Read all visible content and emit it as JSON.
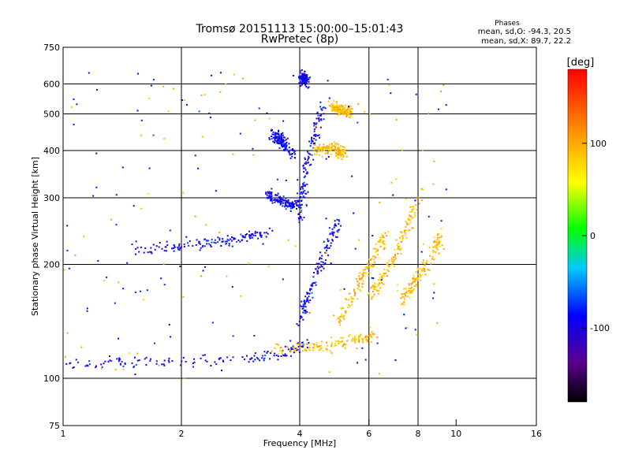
{
  "chart_data": {
    "type": "scatter",
    "title": "Tromsø 20151113 15:00:00–15:01:43",
    "subtitle": "RwPretec (8p)",
    "xlabel": "Frequency [MHz]",
    "ylabel": "Stationary phase Virtual Height [km]",
    "x_scale": "log",
    "y_scale": "log",
    "xlim": [
      1,
      16
    ],
    "ylim": [
      75,
      750
    ],
    "x_ticks": [
      "1",
      "2",
      "4",
      "6",
      "8",
      "10",
      "16"
    ],
    "x_tick_values": [
      1,
      2,
      4,
      6,
      8,
      10,
      16
    ],
    "y_ticks": [
      "75",
      "100",
      "200",
      "300",
      "400",
      "500",
      "600",
      "750"
    ],
    "y_tick_values": [
      75,
      100,
      200,
      300,
      400,
      500,
      600,
      750
    ],
    "x_gridlines": [
      2,
      4,
      6,
      8
    ],
    "y_gridlines": [
      100,
      200,
      300,
      400,
      500,
      600
    ],
    "legend": {
      "title": "Phases",
      "line1": "mean, sd,O: -94.3, 20.5",
      "line2": "mean, sd,X: 89.7, 22.2",
      "placement": "top-right"
    },
    "colorbar": {
      "label": "[deg]",
      "ticks": [
        "100",
        "0",
        "-100"
      ],
      "tick_values": [
        100,
        0,
        -100
      ],
      "range": [
        -180,
        180
      ],
      "colormap": "rainbow (black-purple-blue-cyan-green-yellow-orange-red)"
    },
    "series": [
      {
        "mode": "O",
        "phase_mean": -94.3,
        "traces": [
          {
            "x": [
              1.0,
              1.15,
              1.3,
              1.5,
              1.75,
              2.0,
              2.4,
              2.8,
              3.2,
              3.5,
              3.8,
              4.0,
              4.2
            ],
            "y": [
              108,
              109,
              110,
              110,
              111,
              111,
              112,
              113,
              114,
              116,
              118,
              120,
              124
            ]
          },
          {
            "x": [
              1.5,
              1.8,
              2.1,
              2.4,
              2.7,
              3.0,
              3.3
            ],
            "y": [
              220,
              222,
              225,
              228,
              232,
              238,
              242
            ]
          },
          {
            "x": [
              3.3,
              3.45,
              3.6,
              3.75,
              3.9
            ],
            "y": [
              305,
              300,
              295,
              290,
              285
            ]
          },
          {
            "x": [
              3.4,
              3.55,
              3.7,
              3.85
            ],
            "y": [
              440,
              430,
              410,
              390
            ]
          },
          {
            "x": [
              4.0,
              4.05,
              4.1,
              4.2,
              4.4,
              4.6
            ],
            "y": [
              260,
              300,
              340,
              380,
              450,
              520
            ]
          },
          {
            "x": [
              4.05,
              4.1,
              4.15
            ],
            "y": [
              630,
              620,
              610
            ]
          },
          {
            "x": [
              4.0,
              4.2,
              4.4,
              4.7,
              5.0
            ],
            "y": [
              140,
              165,
              190,
              220,
              260
            ]
          }
        ]
      },
      {
        "mode": "X",
        "phase_mean": 89.7,
        "traces": [
          {
            "x": [
              3.4,
              3.8,
              4.2,
              4.6,
              5.0,
              5.4,
              5.8,
              6.2
            ],
            "y": [
              118,
              119,
              120,
              122,
              124,
              126,
              128,
              131
            ]
          },
          {
            "x": [
              4.4,
              4.6,
              4.8,
              5.0,
              5.2
            ],
            "y": [
              400,
              405,
              410,
              400,
              390
            ]
          },
          {
            "x": [
              4.8,
              5.0,
              5.2,
              5.4
            ],
            "y": [
              520,
              515,
              510,
              505
            ]
          },
          {
            "x": [
              5.0,
              5.4,
              5.8,
              6.2,
              6.6
            ],
            "y": [
              140,
              160,
              185,
              210,
              240
            ]
          },
          {
            "x": [
              6.0,
              6.4,
              6.8,
              7.2,
              7.6,
              8.0
            ],
            "y": [
              165,
              180,
              200,
              230,
              260,
              300
            ]
          },
          {
            "x": [
              7.2,
              7.6,
              8.0,
              8.4,
              8.8,
              9.1
            ],
            "y": [
              160,
              170,
              185,
              200,
              220,
              240
            ]
          }
        ]
      }
    ]
  }
}
